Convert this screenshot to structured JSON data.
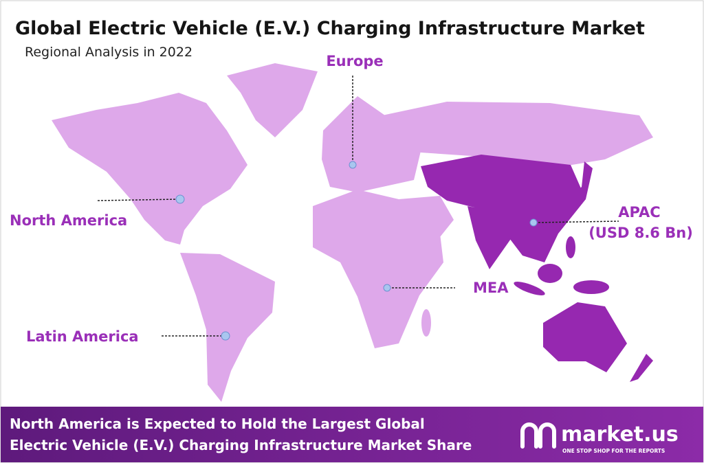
{
  "header": {
    "title": "Global Electric Vehicle (E.V.) Charging Infrastructure Market",
    "subtitle": "Regional Analysis in 2022"
  },
  "regions": [
    {
      "name": "Europe"
    },
    {
      "name": "North America"
    },
    {
      "name": "APAC",
      "value_label": "(USD 8.6 Bn)"
    },
    {
      "name": "MEA"
    },
    {
      "name": "Latin America"
    }
  ],
  "footer": {
    "lines": [
      "North America is Expected to Hold the Largest Global",
      "Electric Vehicle (E.V.) Charging Infrastructure Market Share"
    ],
    "logo": {
      "name": "market.us",
      "tagline": "ONE STOP SHOP FOR THE REPORTS"
    }
  }
}
